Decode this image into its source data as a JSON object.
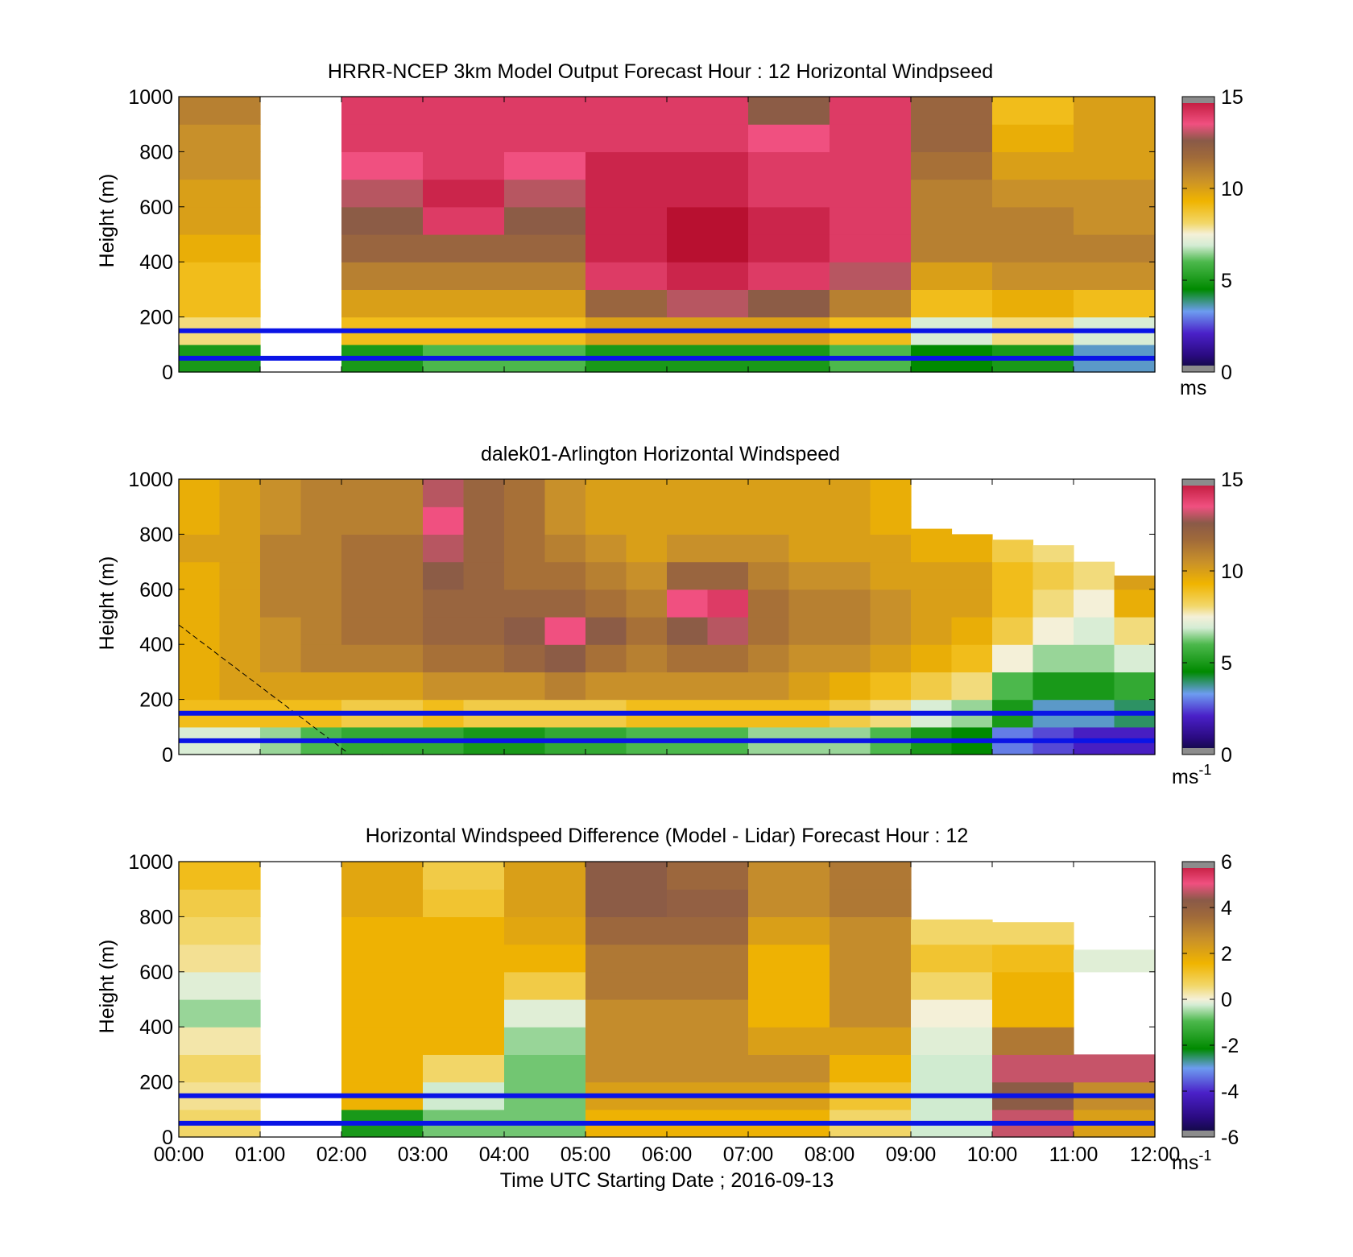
{
  "chart_data": [
    {
      "type": "heatmap",
      "title": "HRRR-NCEP 3km Model Output   Forecast Hour : 12 Horizontal Windpseed",
      "ylabel": "Height (m)",
      "xlim": [
        "00:00",
        "12:00"
      ],
      "ylim": [
        0,
        1000
      ],
      "yticks": [
        "0",
        "200",
        "400",
        "600",
        "800",
        "1000"
      ],
      "colorbar": {
        "min": 0,
        "max": 15,
        "ticks": [
          "0",
          "5",
          "10",
          "15"
        ],
        "unit": "ms"
      },
      "reference_lines_height_m": [
        50,
        150
      ],
      "hourly_columns": [
        {
          "start": "00:00",
          "bottom_to_top": [
            5,
            8,
            9,
            9,
            9.5,
            10,
            10,
            10.5,
            10.5,
            11
          ]
        },
        {
          "start": "01:00",
          "bottom_to_top": [
            null,
            null,
            null,
            null,
            null,
            null,
            null,
            null,
            null,
            null
          ]
        },
        {
          "start": "02:00",
          "bottom_to_top": [
            5,
            9,
            10,
            11,
            12,
            12.5,
            13,
            13.5,
            14,
            14
          ]
        },
        {
          "start": "03:00",
          "bottom_to_top": [
            6,
            9,
            10,
            11,
            12,
            14,
            14.5,
            14,
            14,
            14
          ]
        },
        {
          "start": "04:00",
          "bottom_to_top": [
            6,
            9,
            10,
            11,
            12,
            12.5,
            13,
            13.5,
            14,
            14
          ]
        },
        {
          "start": "05:00",
          "bottom_to_top": [
            5,
            10,
            12,
            14,
            14.5,
            14.5,
            14.5,
            14.5,
            14,
            14
          ]
        },
        {
          "start": "06:00",
          "bottom_to_top": [
            5,
            10,
            13,
            14.5,
            15,
            15,
            14.5,
            14.5,
            14,
            14
          ]
        },
        {
          "start": "07:00",
          "bottom_to_top": [
            5,
            10,
            12.5,
            14,
            14.5,
            14.5,
            14,
            14,
            13.5,
            12.5
          ]
        },
        {
          "start": "08:00",
          "bottom_to_top": [
            6,
            9,
            11,
            13,
            14,
            14,
            14,
            14,
            14,
            14
          ]
        },
        {
          "start": "09:00",
          "bottom_to_top": [
            4.5,
            7,
            9,
            10,
            11,
            11,
            11,
            11.5,
            12,
            12
          ]
        },
        {
          "start": "10:00",
          "bottom_to_top": [
            5,
            8,
            9.5,
            10.5,
            11,
            11,
            10.5,
            10,
            9.5,
            9
          ]
        },
        {
          "start": "11:00",
          "bottom_to_top": [
            3.5,
            7,
            9,
            10.5,
            11,
            10.5,
            10.5,
            10,
            10,
            10
          ]
        }
      ]
    },
    {
      "type": "heatmap",
      "title": "dalek01-Arlington  Horizontal Windspeed",
      "ylabel": "Height (m)",
      "xlim": [
        "00:00",
        "12:00"
      ],
      "ylim": [
        0,
        1000
      ],
      "yticks": [
        "0",
        "200",
        "400",
        "600",
        "800",
        "1000"
      ],
      "colorbar": {
        "min": 0,
        "max": 15,
        "ticks": [
          "0",
          "5",
          "10",
          "15"
        ],
        "unit": "ms-1"
      },
      "reference_lines_height_m": [
        50,
        150
      ],
      "half_hourly_columns": [
        {
          "start": "00:00",
          "bottom_to_top": [
            7,
            9,
            9.5,
            9.5,
            9.5,
            9.5,
            9.5,
            10,
            9.5,
            9.5
          ],
          "top_m": 1000
        },
        {
          "start": "00:30",
          "bottom_to_top": [
            7,
            9,
            10,
            10,
            10,
            10,
            10,
            10,
            10,
            10
          ],
          "top_m": 1000
        },
        {
          "start": "01:00",
          "bottom_to_top": [
            6.5,
            9,
            10,
            10.5,
            10.5,
            11,
            11,
            11,
            10.5,
            10.5
          ],
          "top_m": 1000
        },
        {
          "start": "01:30",
          "bottom_to_top": [
            6,
            9,
            10,
            11,
            11,
            11,
            11,
            11,
            11,
            11
          ],
          "top_m": 1000
        },
        {
          "start": "02:00",
          "bottom_to_top": [
            5.5,
            8.5,
            10,
            11,
            11.5,
            11.5,
            11.5,
            11.5,
            11,
            11
          ],
          "top_m": 1000
        },
        {
          "start": "02:30",
          "bottom_to_top": [
            5.5,
            8.5,
            10,
            11,
            11.5,
            11.5,
            11.5,
            11.5,
            11,
            11
          ],
          "top_m": 1000
        },
        {
          "start": "03:00",
          "bottom_to_top": [
            5.5,
            9,
            10.5,
            11.5,
            12,
            12,
            12.5,
            13,
            13.5,
            13
          ],
          "top_m": 1000
        },
        {
          "start": "03:30",
          "bottom_to_top": [
            5,
            8.5,
            10.5,
            11.5,
            12,
            12,
            12,
            12,
            12,
            12
          ],
          "top_m": 1000
        },
        {
          "start": "04:00",
          "bottom_to_top": [
            5,
            8.5,
            10.5,
            12,
            12.5,
            12,
            11.5,
            11.5,
            11.5,
            11.5
          ],
          "top_m": 1000
        },
        {
          "start": "04:30",
          "bottom_to_top": [
            5.5,
            8.5,
            11,
            12.5,
            13.5,
            12,
            11.5,
            11,
            10.5,
            10.5
          ],
          "top_m": 1000
        },
        {
          "start": "05:00",
          "bottom_to_top": [
            5.5,
            8.5,
            10.5,
            11.5,
            12.5,
            11.5,
            11,
            10.5,
            10,
            10
          ],
          "top_m": 1000
        },
        {
          "start": "05:30",
          "bottom_to_top": [
            6,
            9,
            10.5,
            11,
            11.5,
            11,
            10.5,
            10,
            10,
            10
          ],
          "top_m": 1000
        },
        {
          "start": "06:00",
          "bottom_to_top": [
            6,
            9,
            10.5,
            11.5,
            12.5,
            13.5,
            12,
            10.5,
            10,
            10
          ],
          "top_m": 1000
        },
        {
          "start": "06:30",
          "bottom_to_top": [
            6,
            9,
            10.5,
            11.5,
            13,
            14,
            12,
            10.5,
            10,
            10
          ],
          "top_m": 1000
        },
        {
          "start": "07:00",
          "bottom_to_top": [
            6.5,
            9,
            10.5,
            11,
            11.5,
            11.5,
            11,
            10.5,
            10,
            10
          ],
          "top_m": 1000
        },
        {
          "start": "07:30",
          "bottom_to_top": [
            6.5,
            9,
            10,
            10.5,
            11,
            11,
            10.5,
            10,
            10,
            10
          ],
          "top_m": 1000
        },
        {
          "start": "08:00",
          "bottom_to_top": [
            6.5,
            8.5,
            9.5,
            10.5,
            11,
            11,
            10.5,
            10,
            10,
            10
          ],
          "top_m": 1000
        },
        {
          "start": "08:30",
          "bottom_to_top": [
            6,
            8,
            9,
            10,
            10.5,
            10.5,
            10,
            10,
            9.5,
            9.5
          ],
          "top_m": 1000
        },
        {
          "start": "09:00",
          "bottom_to_top": [
            5,
            7,
            8.5,
            9.5,
            10,
            10,
            10,
            9.5,
            9.5,
            null
          ],
          "top_m": 820
        },
        {
          "start": "09:30",
          "bottom_to_top": [
            4.5,
            6.5,
            8,
            9,
            9.5,
            10,
            10,
            9.5,
            null,
            null
          ],
          "top_m": 800
        },
        {
          "start": "10:00",
          "bottom_to_top": [
            3,
            5,
            6,
            7.5,
            8.5,
            9,
            9,
            8.5,
            null,
            null
          ],
          "top_m": 780
        },
        {
          "start": "10:30",
          "bottom_to_top": [
            2.5,
            3.5,
            5,
            6.5,
            7.5,
            8,
            8.5,
            8,
            null,
            null
          ],
          "top_m": 760
        },
        {
          "start": "11:00",
          "bottom_to_top": [
            2,
            3.5,
            5,
            6.5,
            7,
            7.5,
            8,
            null,
            null,
            null
          ],
          "top_m": 700
        },
        {
          "start": "11:30",
          "bottom_to_top": [
            2,
            4,
            5.5,
            7,
            8,
            9.5,
            10,
            null,
            null,
            null
          ],
          "top_m": 650
        }
      ]
    },
    {
      "type": "heatmap",
      "title": "Horizontal Windspeed Difference (Model - Lidar) Forecast Hour : 12",
      "ylabel": "Height (m)",
      "xlabel": "Time UTC  Starting Date ; 2016-09-13",
      "xlim": [
        "00:00",
        "12:00"
      ],
      "xticks": [
        "00:00",
        "01:00",
        "02:00",
        "03:00",
        "04:00",
        "05:00",
        "06:00",
        "07:00",
        "08:00",
        "09:00",
        "10:00",
        "11:00",
        "12:00"
      ],
      "ylim": [
        0,
        1000
      ],
      "yticks": [
        "0",
        "200",
        "400",
        "600",
        "800",
        "1000"
      ],
      "colorbar": {
        "min": -6,
        "max": 6,
        "ticks": [
          "-6",
          "-4",
          "-2",
          "0",
          "2",
          "4",
          "6"
        ],
        "unit": "ms-1"
      },
      "reference_lines_height_m": [
        50,
        150
      ],
      "hourly_columns": [
        {
          "start": "00:00",
          "bottom_to_top": [
            0.5,
            0.3,
            0.5,
            0.2,
            -0.8,
            -0.3,
            0.3,
            0.5,
            0.8,
            1.2
          ],
          "top_m": 1000
        },
        {
          "start": "01:00",
          "bottom_to_top": [
            null,
            null,
            null,
            null,
            null,
            null,
            null,
            null,
            null,
            null
          ],
          "top_m": 0
        },
        {
          "start": "02:00",
          "bottom_to_top": [
            -2,
            1.5,
            1.5,
            1.5,
            1.5,
            1.5,
            1.5,
            1.5,
            1.8,
            1.8
          ],
          "top_m": 1000
        },
        {
          "start": "03:00",
          "bottom_to_top": [
            -1,
            -0.5,
            0.5,
            1.5,
            1.5,
            1.5,
            1.5,
            1.5,
            1,
            0.8
          ],
          "top_m": 1000
        },
        {
          "start": "04:00",
          "bottom_to_top": [
            -1,
            -1,
            -1,
            -0.8,
            -0.3,
            0.8,
            1.5,
            1.8,
            2,
            2
          ],
          "top_m": 1000
        },
        {
          "start": "05:00",
          "bottom_to_top": [
            1.5,
            2,
            2.5,
            2.5,
            2.5,
            3,
            3,
            3.5,
            4,
            4
          ],
          "top_m": 1000
        },
        {
          "start": "06:00",
          "bottom_to_top": [
            1.5,
            2,
            2.5,
            2.5,
            2.5,
            3,
            3,
            3.5,
            3.8,
            3.5
          ],
          "top_m": 1000
        },
        {
          "start": "07:00",
          "bottom_to_top": [
            1.5,
            2,
            2.5,
            2,
            1.5,
            1.5,
            1.5,
            2,
            2.5,
            2.5
          ],
          "top_m": 1000
        },
        {
          "start": "08:00",
          "bottom_to_top": [
            0.5,
            1,
            1.5,
            2,
            2.5,
            2.5,
            2.5,
            2.5,
            3,
            3
          ],
          "top_m": 1000
        },
        {
          "start": "09:00",
          "bottom_to_top": [
            -0.5,
            -0.5,
            -0.5,
            -0.3,
            0,
            0.5,
            1,
            0.5,
            null,
            null
          ],
          "top_m": 790
        },
        {
          "start": "10:00",
          "bottom_to_top": [
            4.5,
            4,
            4.5,
            3,
            1.5,
            1.5,
            1.2,
            0.5,
            null,
            null
          ],
          "top_m": 780
        },
        {
          "start": "11:00",
          "bottom_to_top": [
            2,
            2.5,
            4.5,
            null,
            null,
            null,
            -0.3,
            null,
            null,
            null
          ],
          "top_m": 680
        }
      ]
    }
  ]
}
